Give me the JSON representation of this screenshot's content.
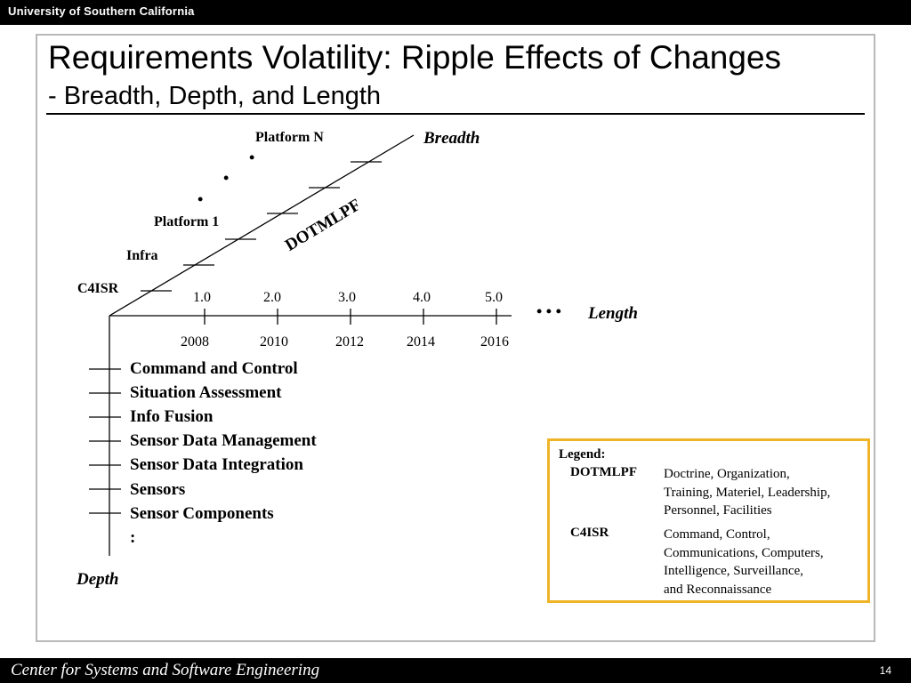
{
  "header": {
    "university": "University of Southern California"
  },
  "slide": {
    "title": "Requirements Volatility: Ripple Effects of Changes",
    "subtitle": "- Breadth, Depth, and Length"
  },
  "breadth_axis": {
    "axis_label": "Breadth",
    "dimension_label": "DOTMLPF",
    "levels": [
      "C4ISR",
      "Infra",
      "Platform 1",
      "Platform N"
    ],
    "ellipsis": "•"
  },
  "length_axis": {
    "axis_label": "Length",
    "ellipsis": "• • •",
    "versions": [
      "1.0",
      "2.0",
      "3.0",
      "4.0",
      "5.0"
    ],
    "years": [
      "2008",
      "2010",
      "2012",
      "2014",
      "2016"
    ]
  },
  "depth_axis": {
    "axis_label": "Depth",
    "levels": [
      "Command and Control",
      "Situation Assessment",
      "Info Fusion",
      "Sensor Data Management",
      "Sensor Data Integration",
      "Sensors",
      "Sensor Components"
    ],
    "continuation": ":"
  },
  "legend": {
    "title": "Legend:",
    "entries": [
      {
        "term": "DOTMLPF",
        "definition_lines": [
          "Doctrine, Organization,",
          "Training, Materiel, Leadership,",
          "Personnel, Facilities"
        ]
      },
      {
        "term": "C4ISR",
        "definition_lines": [
          "Command, Control,",
          "Communications, Computers,",
          "Intelligence, Surveillance,",
          "and Reconnaissance"
        ]
      }
    ]
  },
  "footer": {
    "center_name": "Center for Systems and Software Engineering",
    "page_number": "14"
  },
  "colors": {
    "legend_border": "#f0b428",
    "bars": "#000000",
    "frame": "#b8b8b8"
  }
}
